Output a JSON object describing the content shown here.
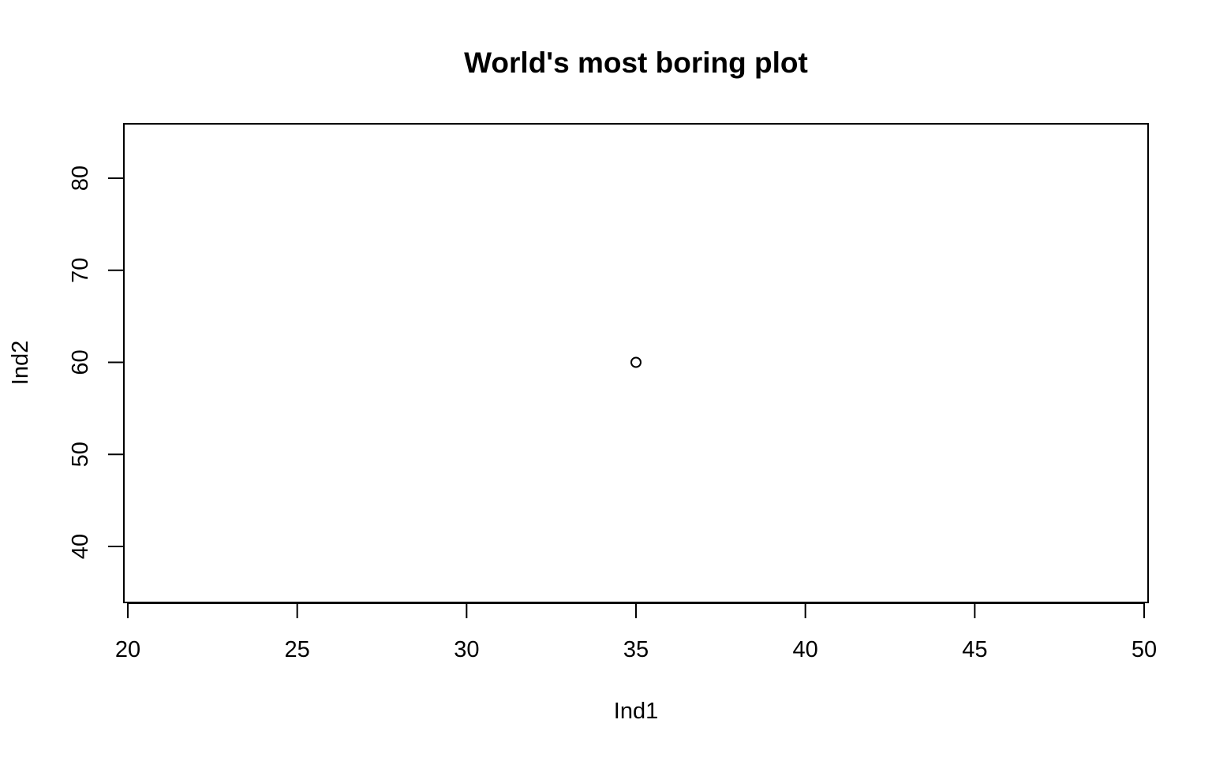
{
  "chart_data": {
    "type": "scatter",
    "title": "World's most boring plot",
    "xlabel": "Ind1",
    "ylabel": "Ind2",
    "xlim": [
      20,
      50
    ],
    "ylim": [
      34,
      86
    ],
    "x_ticks": [
      20,
      25,
      30,
      35,
      40,
      45,
      50
    ],
    "y_ticks": [
      40,
      50,
      60,
      70,
      80
    ],
    "x_tick_labels": [
      "20",
      "25",
      "30",
      "35",
      "40",
      "45",
      "50"
    ],
    "y_tick_labels": [
      "40",
      "50",
      "60",
      "70",
      "80"
    ],
    "points": [
      {
        "x": 35,
        "y": 60
      }
    ],
    "marker": "open-circle",
    "grid": false,
    "legend": "none",
    "colors": {
      "foreground": "#000000",
      "background": "#ffffff"
    }
  }
}
